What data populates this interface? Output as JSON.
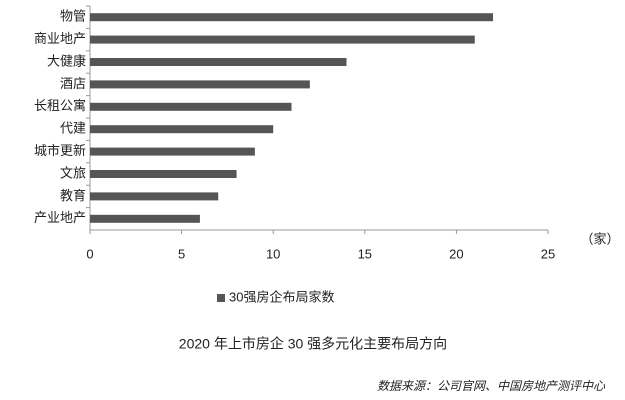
{
  "chart_data": {
    "type": "hbar",
    "categories": [
      "物管",
      "商业地产",
      "大健康",
      "酒店",
      "长租公寓",
      "代建",
      "城市更新",
      "文旅",
      "教育",
      "产业地产"
    ],
    "series": [
      {
        "name": "30强房企布局家数",
        "color": "#555555",
        "values": [
          22,
          21,
          14,
          12,
          11,
          10,
          9,
          8,
          7,
          6
        ]
      }
    ],
    "xlim": [
      0,
      25
    ],
    "xticks": [
      0,
      5,
      10,
      15,
      20,
      25
    ],
    "x_unit": "（家）",
    "title": "2020 年上市房企 30 强多元化主要布局方向",
    "source": "数据来源：公司官网、中国房地产测评中心",
    "legend": "bottom"
  }
}
